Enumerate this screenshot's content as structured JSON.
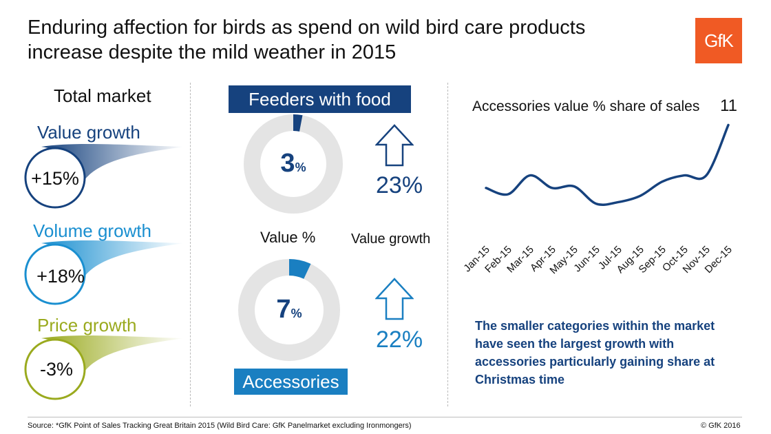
{
  "title_line1": "Enduring affection for birds as spend on wild bird care products",
  "title_line2": "increase despite the mild weather in 2015",
  "logo_text": "GfK",
  "total_market": {
    "title": "Total market",
    "items": [
      {
        "label": "Value growth",
        "value": "+15%",
        "color": "#16427e"
      },
      {
        "label": "Volume growth",
        "value": "+18%",
        "color": "#1a8fd0"
      },
      {
        "label": "Price growth",
        "value": "-3%",
        "color": "#9aaa1e"
      }
    ]
  },
  "middle": {
    "value_pct_label": "Value %",
    "value_growth_label": "Value growth",
    "feeders": {
      "label": "Feeders with food",
      "share": 3,
      "share_unit": "%",
      "growth": "23%",
      "color": "#16427e"
    },
    "accessories": {
      "label": "Accessories",
      "share": 7,
      "share_unit": "%",
      "growth": "22%",
      "color": "#1a7fc1"
    }
  },
  "chart_data": {
    "type": "line",
    "title": "Accessories value % share of sales",
    "x": [
      "Jan-15",
      "Feb-15",
      "Mar-15",
      "Apr-15",
      "May-15",
      "Jun-15",
      "Jul-15",
      "Aug-15",
      "Sep-15",
      "Oct-15",
      "Nov-15",
      "Dec-15"
    ],
    "series": [
      {
        "values": [
          7.0,
          6.6,
          7.8,
          7.0,
          7.1,
          6.0,
          6.1,
          6.5,
          7.4,
          7.8,
          7.8,
          11.0
        ]
      }
    ],
    "end_label": "11",
    "ylim": [
      4.5,
      11.5
    ],
    "color": "#16427e",
    "grid": false
  },
  "note": "The smaller categories within the market have seen the largest growth with accessories particularly gaining share at Christmas time",
  "source": "Source: *GfK Point of Sales Tracking Great Britain 2015  (Wild Bird Care: GfK Panelmarket excluding Ironmongers)",
  "copyright": "© GfK 2016"
}
